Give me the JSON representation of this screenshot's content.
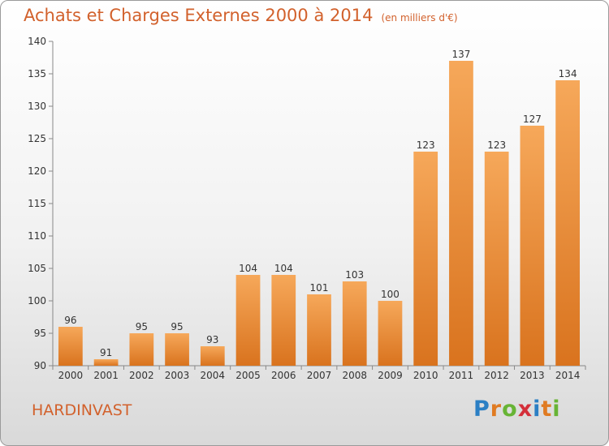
{
  "chart_data": {
    "type": "bar",
    "title": "Achats et Charges Externes 2000 à 2014",
    "unit_label": "(en milliers d'€)",
    "categories": [
      "2000",
      "2001",
      "2002",
      "2003",
      "2004",
      "2005",
      "2006",
      "2007",
      "2008",
      "2009",
      "2010",
      "2011",
      "2012",
      "2013",
      "2014"
    ],
    "values": [
      96,
      91,
      95,
      95,
      93,
      104,
      104,
      101,
      103,
      100,
      123,
      137,
      123,
      127,
      134
    ],
    "ylim": [
      90,
      140
    ],
    "yticks": [
      90,
      95,
      100,
      105,
      110,
      115,
      120,
      125,
      130,
      135,
      140
    ],
    "grid": false,
    "bar_color": "#f0903a"
  },
  "commune": "HARDINVAST",
  "logo": {
    "letters": [
      "P",
      "r",
      "o",
      "x",
      "i",
      "t",
      "i"
    ],
    "colors": [
      "#2b7fc4",
      "#e07b22",
      "#67b435",
      "#d42f3a",
      "#2b7fc4",
      "#e07b22",
      "#67b435"
    ]
  }
}
